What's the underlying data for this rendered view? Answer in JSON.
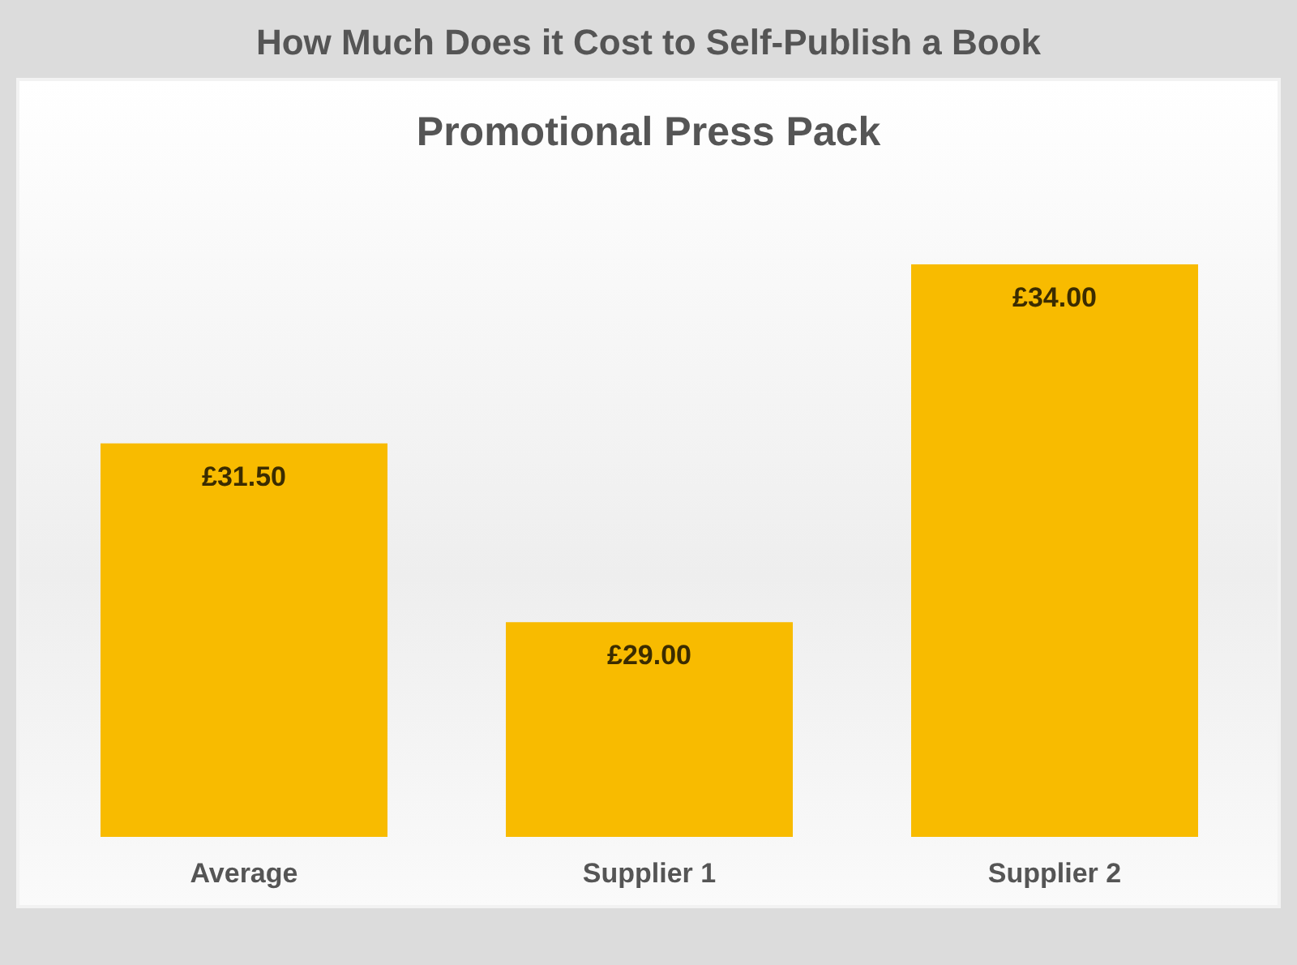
{
  "chart_data": {
    "type": "bar",
    "title": "How Much Does it Cost to Self-Publish a Book",
    "subtitle": "Promotional Press Pack",
    "categories": [
      "Average",
      "Supplier 1",
      "Supplier 2"
    ],
    "values": [
      31.5,
      29,
      34
    ],
    "value_labels": [
      "£31.50",
      "£29.00",
      "£34.00"
    ],
    "color": "#f8bb00",
    "ylim": [
      26,
      34
    ],
    "tick_labels": "x"
  }
}
